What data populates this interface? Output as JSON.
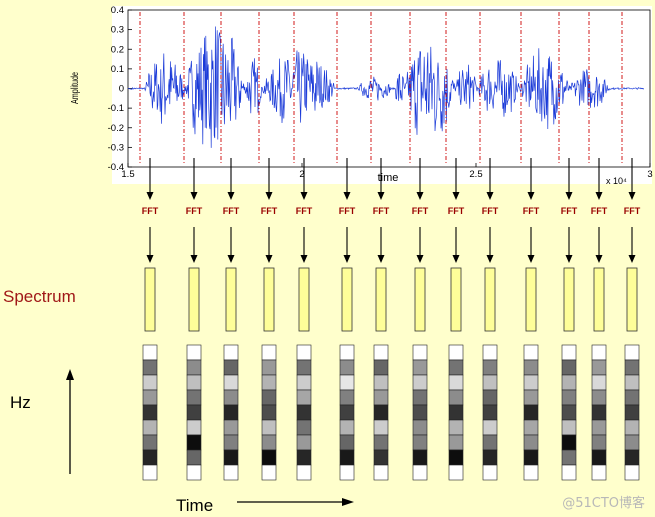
{
  "waveform": {
    "ylabel": "Amplitude",
    "xlabel": "time",
    "y_ticks": [
      "0.4",
      "0.3",
      "0.2",
      "0.1",
      "0",
      "-0.1",
      "-0.2",
      "-0.3",
      "-0.4"
    ],
    "x_ticks": [
      "1.5",
      "2",
      "2.5",
      "3"
    ],
    "x_exponent": "x 10⁴"
  },
  "fft_label": "FFT",
  "frame_count": 14,
  "spectrum_label": "Spectrum",
  "hz_label": "Hz",
  "time_label": "Time",
  "watermark": "@51CTO博客",
  "colors": {
    "background": "#ffffcc",
    "waveform": "#1a3ad8",
    "frame_lines": "#cc0000",
    "fft_text": "#990000",
    "spectrum_box": "#ffff99",
    "spectrum_label": "#a01818"
  },
  "spectrogram_columns": [
    [
      0.0,
      0.55,
      0.2,
      0.4,
      0.8,
      0.3,
      0.55,
      0.85,
      0.0
    ],
    [
      0.0,
      0.45,
      0.25,
      0.55,
      0.75,
      0.2,
      0.95,
      0.6,
      0.0
    ],
    [
      0.0,
      0.6,
      0.15,
      0.45,
      0.85,
      0.4,
      0.5,
      0.9,
      0.0
    ],
    [
      0.0,
      0.4,
      0.3,
      0.6,
      0.7,
      0.25,
      0.45,
      0.95,
      0.0
    ],
    [
      0.0,
      0.55,
      0.2,
      0.35,
      0.8,
      0.55,
      0.4,
      0.85,
      0.0
    ],
    [
      0.0,
      0.45,
      0.1,
      0.5,
      0.75,
      0.3,
      0.6,
      0.9,
      0.0
    ],
    [
      0.0,
      0.6,
      0.25,
      0.4,
      0.85,
      0.2,
      0.55,
      0.8,
      0.0
    ],
    [
      0.0,
      0.4,
      0.2,
      0.55,
      0.7,
      0.45,
      0.5,
      0.9,
      0.0
    ],
    [
      0.0,
      0.55,
      0.15,
      0.45,
      0.8,
      0.3,
      0.4,
      0.95,
      0.0
    ],
    [
      0.0,
      0.5,
      0.25,
      0.6,
      0.75,
      0.2,
      0.55,
      0.85,
      0.0
    ],
    [
      0.0,
      0.45,
      0.2,
      0.4,
      0.85,
      0.35,
      0.45,
      0.9,
      0.0
    ],
    [
      0.0,
      0.6,
      0.3,
      0.5,
      0.7,
      0.25,
      0.95,
      0.55,
      0.0
    ],
    [
      0.0,
      0.4,
      0.15,
      0.45,
      0.8,
      0.4,
      0.5,
      0.9,
      0.0
    ],
    [
      0.0,
      0.55,
      0.25,
      0.55,
      0.75,
      0.3,
      0.45,
      0.85,
      0.0
    ]
  ]
}
